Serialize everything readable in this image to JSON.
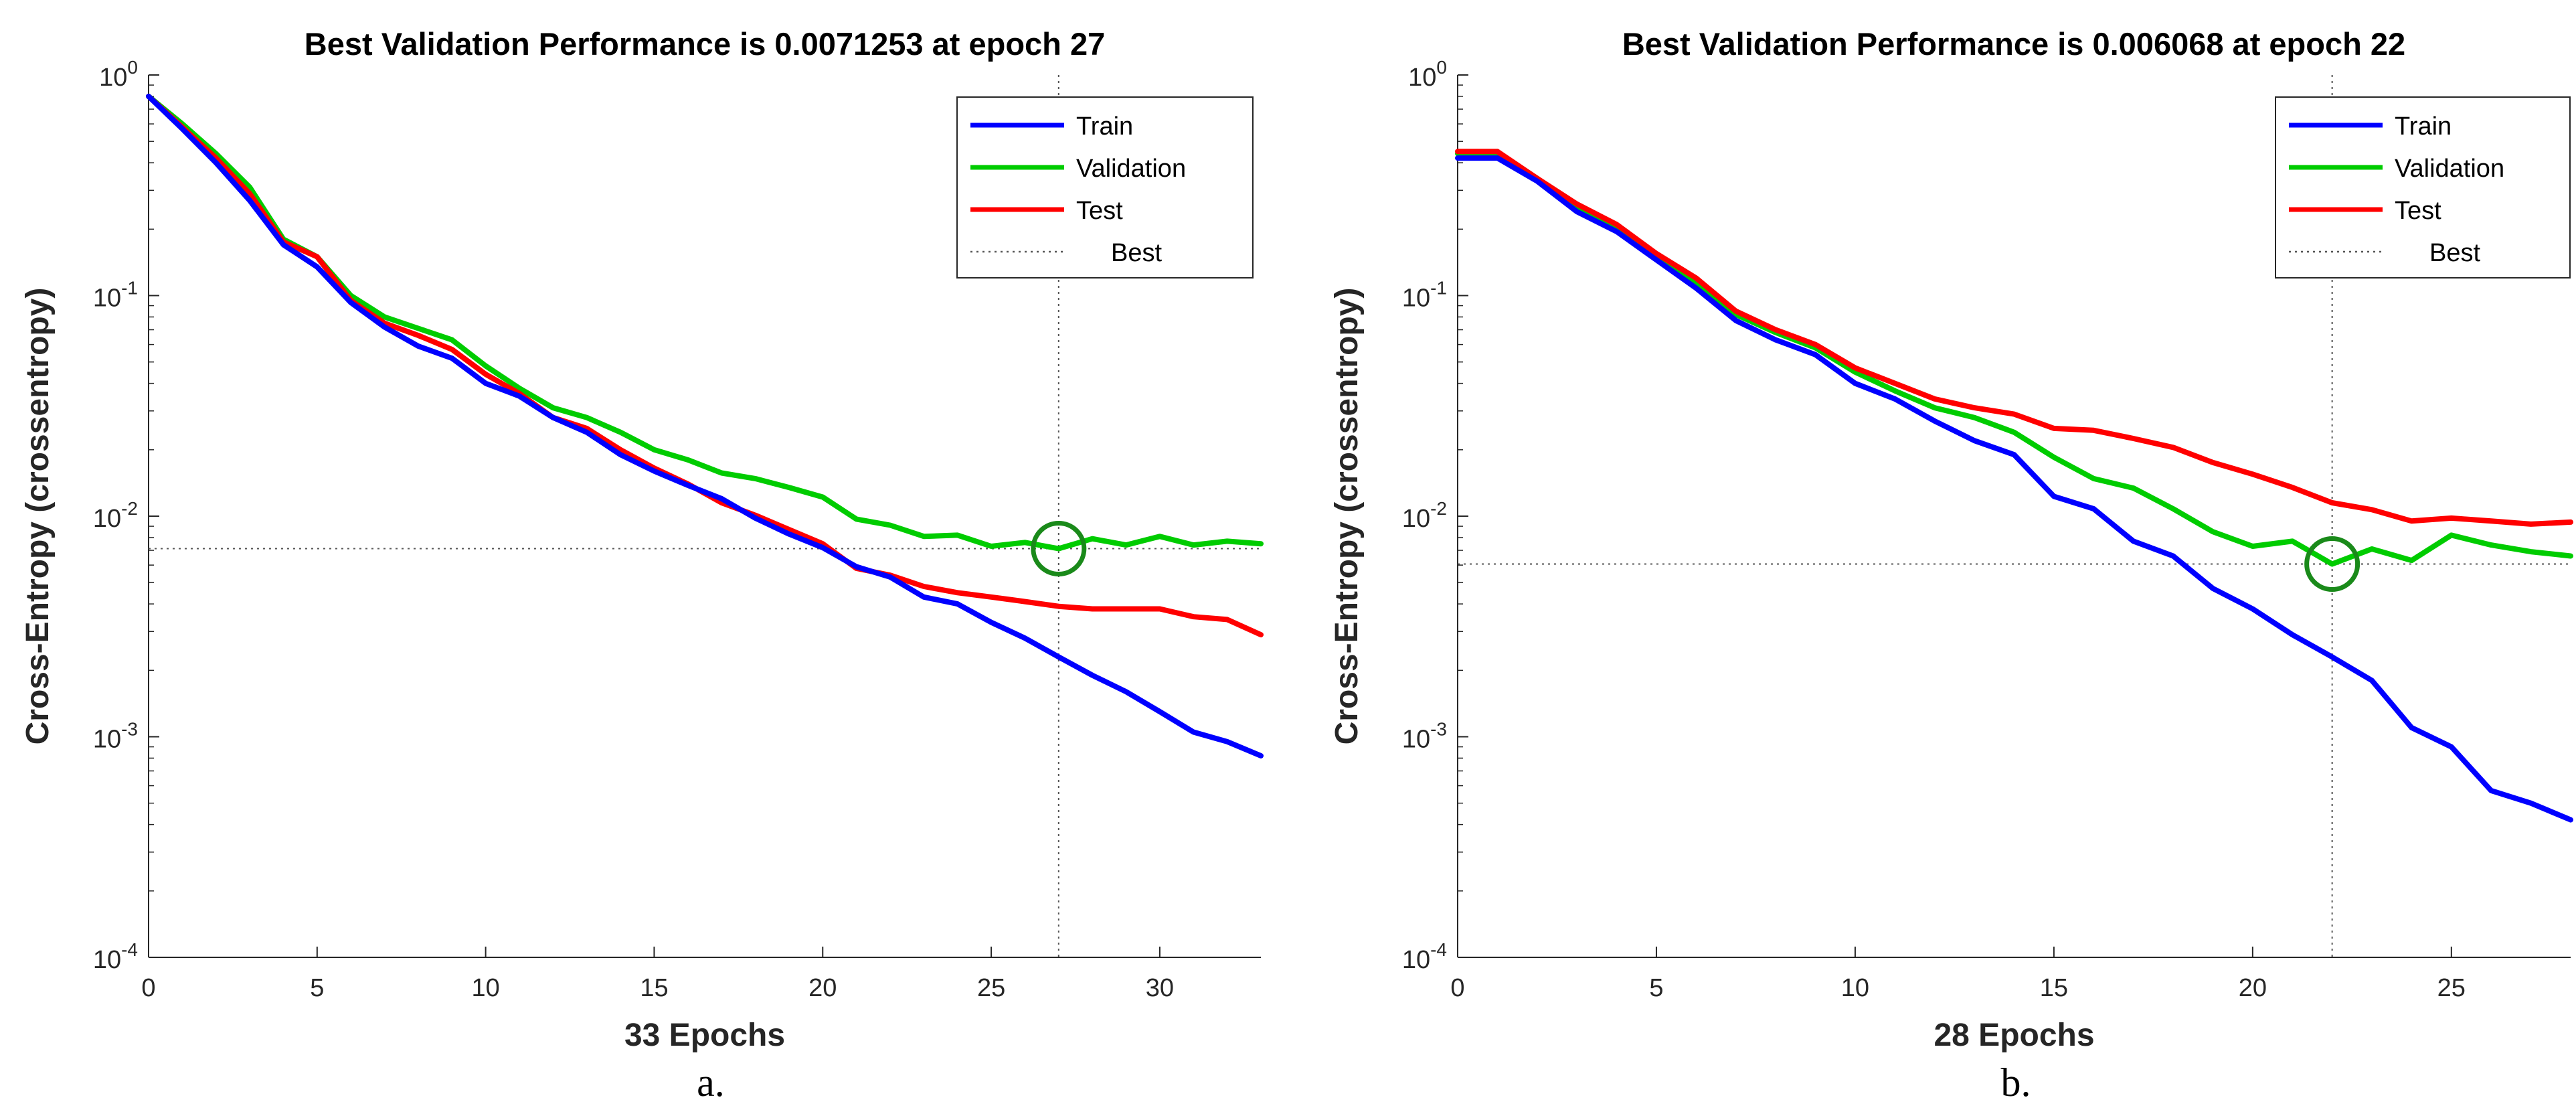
{
  "figure": {
    "captions": [
      "a.",
      "b."
    ]
  },
  "colors": {
    "train": "#0000ff",
    "validation": "#00cc00",
    "test": "#ff0000",
    "best_marker": "#1a8a1a",
    "axis": "#262626",
    "best_line": "#555555"
  },
  "chart_data": [
    {
      "type": "line",
      "title": "Best Validation Performance is 0.0071253 at epoch 27",
      "xlabel": "33 Epochs",
      "ylabel": "Cross-Entropy  (crossentropy)",
      "yscale": "log",
      "xlim": [
        0,
        33
      ],
      "ylim": [
        0.0001,
        1
      ],
      "xticks": [
        0,
        5,
        10,
        15,
        20,
        25,
        30
      ],
      "xtick_labels": [
        "0",
        "5",
        "10",
        "15",
        "20",
        "25",
        "30"
      ],
      "yticks": [
        1,
        0.1,
        0.01,
        0.001,
        0.0001
      ],
      "ytick_labels": [
        {
          "base": "10",
          "exp": "0"
        },
        {
          "base": "10",
          "exp": "-1"
        },
        {
          "base": "10",
          "exp": "-2"
        },
        {
          "base": "10",
          "exp": "-3"
        },
        {
          "base": "10",
          "exp": "-4"
        }
      ],
      "legend": {
        "position": "top-right",
        "entries": [
          "Train",
          "Validation",
          "Test",
          "Best"
        ]
      },
      "best": {
        "epoch": 27,
        "value": 0.0071253
      },
      "series": [
        {
          "name": "Train",
          "key": "train",
          "x": [
            0,
            1,
            2,
            3,
            4,
            5,
            6,
            7,
            8,
            9,
            10,
            11,
            12,
            13,
            14,
            15,
            16,
            17,
            18,
            19,
            20,
            21,
            22,
            23,
            24,
            25,
            26,
            27,
            28,
            29,
            30,
            31,
            32,
            33
          ],
          "values": [
            0.8,
            0.57,
            0.4,
            0.27,
            0.17,
            0.135,
            0.093,
            0.072,
            0.059,
            0.052,
            0.04,
            0.035,
            0.028,
            0.024,
            0.019,
            0.016,
            0.0138,
            0.012,
            0.0098,
            0.0083,
            0.0072,
            0.0059,
            0.0053,
            0.0043,
            0.004,
            0.0033,
            0.0028,
            0.0023,
            0.0019,
            0.0016,
            0.0013,
            0.00105,
            0.00095,
            0.00082
          ]
        },
        {
          "name": "Validation",
          "key": "validation",
          "x": [
            0,
            1,
            2,
            3,
            4,
            5,
            6,
            7,
            8,
            9,
            10,
            11,
            12,
            13,
            14,
            15,
            16,
            17,
            18,
            19,
            20,
            21,
            22,
            23,
            24,
            25,
            26,
            27,
            28,
            29,
            30,
            31,
            32,
            33
          ],
          "values": [
            0.8,
            0.6,
            0.44,
            0.31,
            0.18,
            0.15,
            0.1,
            0.08,
            0.071,
            0.063,
            0.048,
            0.038,
            0.031,
            0.028,
            0.024,
            0.02,
            0.018,
            0.0157,
            0.0148,
            0.0135,
            0.0122,
            0.0097,
            0.0091,
            0.0081,
            0.0082,
            0.0073,
            0.0076,
            0.0071253,
            0.0079,
            0.0074,
            0.0081,
            0.0074,
            0.0077,
            0.0075
          ]
        },
        {
          "name": "Test",
          "key": "test",
          "x": [
            0,
            1,
            2,
            3,
            4,
            5,
            6,
            7,
            8,
            9,
            10,
            11,
            12,
            13,
            14,
            15,
            16,
            17,
            18,
            19,
            20,
            21,
            22,
            23,
            24,
            25,
            26,
            27,
            28,
            29,
            30,
            31,
            32,
            33
          ],
          "values": [
            0.8,
            0.58,
            0.42,
            0.29,
            0.175,
            0.15,
            0.095,
            0.075,
            0.066,
            0.057,
            0.044,
            0.036,
            0.028,
            0.025,
            0.02,
            0.0165,
            0.014,
            0.0115,
            0.0101,
            0.0087,
            0.0075,
            0.0058,
            0.0054,
            0.0048,
            0.0045,
            0.0043,
            0.0041,
            0.0039,
            0.0038,
            0.0038,
            0.0038,
            0.0035,
            0.0034,
            0.0029
          ]
        }
      ]
    },
    {
      "type": "line",
      "title": "Best Validation Performance is 0.006068 at epoch 22",
      "xlabel": "28 Epochs",
      "ylabel": "Cross-Entropy  (crossentropy)",
      "yscale": "log",
      "xlim": [
        0,
        28
      ],
      "ylim": [
        0.0001,
        1
      ],
      "xticks": [
        0,
        5,
        10,
        15,
        20,
        25
      ],
      "xtick_labels": [
        "0",
        "5",
        "10",
        "15",
        "20",
        "25"
      ],
      "yticks": [
        1,
        0.1,
        0.01,
        0.001,
        0.0001
      ],
      "ytick_labels": [
        {
          "base": "10",
          "exp": "0"
        },
        {
          "base": "10",
          "exp": "-1"
        },
        {
          "base": "10",
          "exp": "-2"
        },
        {
          "base": "10",
          "exp": "-3"
        },
        {
          "base": "10",
          "exp": "-4"
        }
      ],
      "legend": {
        "position": "top-right",
        "entries": [
          "Train",
          "Validation",
          "Test",
          "Best"
        ]
      },
      "best": {
        "epoch": 22,
        "value": 0.006068
      },
      "series": [
        {
          "name": "Train",
          "key": "train",
          "x": [
            0,
            1,
            2,
            3,
            4,
            5,
            6,
            7,
            8,
            9,
            10,
            11,
            12,
            13,
            14,
            15,
            16,
            17,
            18,
            19,
            20,
            21,
            22,
            23,
            24,
            25,
            26,
            27,
            28
          ],
          "values": [
            0.42,
            0.42,
            0.33,
            0.24,
            0.195,
            0.145,
            0.108,
            0.077,
            0.063,
            0.054,
            0.04,
            0.034,
            0.027,
            0.022,
            0.019,
            0.0123,
            0.0108,
            0.0077,
            0.0066,
            0.0047,
            0.0038,
            0.0029,
            0.0023,
            0.0018,
            0.0011,
            0.0009,
            0.00057,
            0.0005,
            0.00042
          ]
        },
        {
          "name": "Validation",
          "key": "validation",
          "x": [
            0,
            1,
            2,
            3,
            4,
            5,
            6,
            7,
            8,
            9,
            10,
            11,
            12,
            13,
            14,
            15,
            16,
            17,
            18,
            19,
            20,
            21,
            22,
            23,
            24,
            25,
            26,
            27,
            28
          ],
          "values": [
            0.44,
            0.44,
            0.34,
            0.25,
            0.2,
            0.15,
            0.115,
            0.082,
            0.068,
            0.058,
            0.045,
            0.037,
            0.031,
            0.028,
            0.024,
            0.0185,
            0.0148,
            0.0134,
            0.0108,
            0.0085,
            0.0073,
            0.0077,
            0.006068,
            0.0071,
            0.0063,
            0.0082,
            0.0074,
            0.0069,
            0.0066
          ]
        },
        {
          "name": "Test",
          "key": "test",
          "x": [
            0,
            1,
            2,
            3,
            4,
            5,
            6,
            7,
            8,
            9,
            10,
            11,
            12,
            13,
            14,
            15,
            16,
            17,
            18,
            19,
            20,
            21,
            22,
            23,
            24,
            25,
            26,
            27,
            28
          ],
          "values": [
            0.45,
            0.45,
            0.34,
            0.26,
            0.21,
            0.155,
            0.12,
            0.085,
            0.07,
            0.06,
            0.047,
            0.04,
            0.034,
            0.031,
            0.029,
            0.025,
            0.0245,
            0.0225,
            0.0205,
            0.0175,
            0.0155,
            0.0135,
            0.0115,
            0.0107,
            0.0095,
            0.0098,
            0.0095,
            0.0092,
            0.0094
          ]
        }
      ]
    }
  ]
}
